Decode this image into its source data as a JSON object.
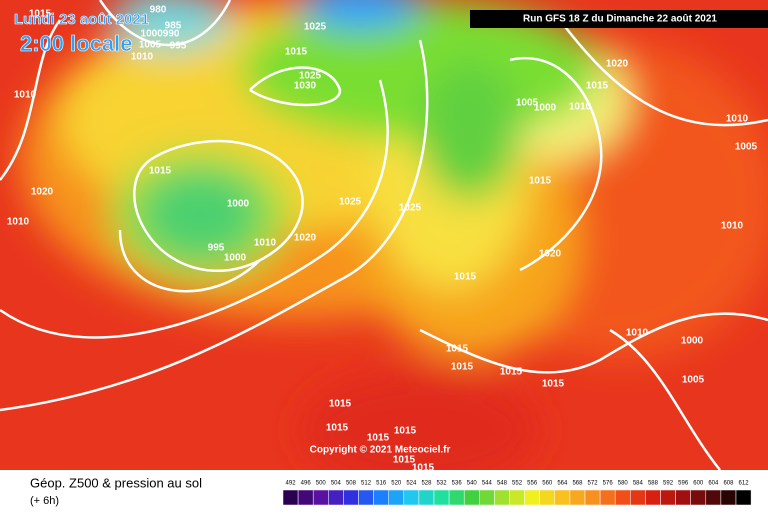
{
  "header": {
    "date": "Lundi 23 août 2021",
    "time": "2:00 locale",
    "run": "Run GFS 18 Z du Dimanche 22 août 2021"
  },
  "map": {
    "copyright": "Copyright © 2021 Meteociel.fr",
    "isobar_labels": [
      "1015",
      "1010",
      "1020",
      "1010",
      "980",
      "985",
      "1000990",
      "1005",
      "1010",
      "995",
      "1025",
      "1015",
      "1025",
      "1030",
      "1015",
      "1000",
      "995",
      "1010",
      "1000",
      "1020",
      "1025",
      "1025",
      "1015",
      "1020",
      "1015",
      "1005",
      "1000",
      "1010",
      "1015",
      "1020",
      "1010",
      "1005",
      "1010",
      "1010",
      "1000",
      "1005",
      "1015",
      "1015",
      "1015",
      "1015",
      "1015",
      "1015",
      "1015",
      "1015",
      "1015",
      "1015"
    ]
  },
  "legend": {
    "title": "Géop. Z500 & pression au sol",
    "subtitle": "(+ 6h)",
    "scale": [
      492,
      496,
      500,
      504,
      508,
      512,
      516,
      520,
      524,
      528,
      532,
      536,
      540,
      544,
      548,
      552,
      556,
      560,
      564,
      568,
      572,
      576,
      580,
      584,
      588,
      592,
      596,
      600,
      604,
      608,
      612
    ]
  }
}
